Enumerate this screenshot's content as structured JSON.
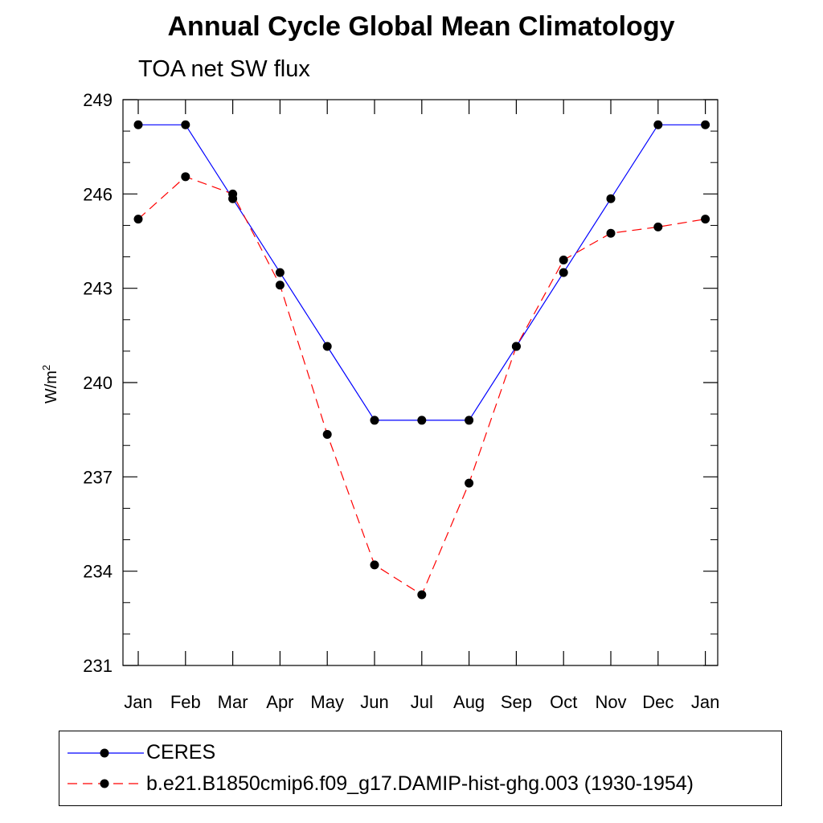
{
  "title": "Annual Cycle Global Mean Climatology",
  "subtitle": "TOA net SW flux",
  "chart_data": {
    "type": "line",
    "title": "Annual Cycle Global Mean Climatology",
    "subtitle": "TOA net SW flux",
    "xlabel": "",
    "ylabel": "W/m",
    "ylabel_superscript": "2",
    "categories": [
      "Jan",
      "Feb",
      "Mar",
      "Apr",
      "May",
      "Jun",
      "Jul",
      "Aug",
      "Sep",
      "Oct",
      "Nov",
      "Dec",
      "Jan"
    ],
    "ylim": [
      231,
      249
    ],
    "yticks": [
      "249",
      "246",
      "243",
      "240",
      "237",
      "234",
      "231"
    ],
    "ytick_values": [
      249,
      246,
      243,
      240,
      237,
      234,
      231
    ],
    "grid": false,
    "legend_position": "bottom",
    "series": [
      {
        "name": "CERES",
        "color": "#0000ff",
        "dash": "solid",
        "values": [
          248.2,
          248.2,
          245.85,
          243.5,
          241.15,
          238.8,
          238.8,
          238.8,
          241.15,
          243.5,
          245.85,
          248.2,
          248.2
        ]
      },
      {
        "name": "b.e21.B1850cmip6.f09_g17.DAMIP-hist-ghg.003 (1930-1954)",
        "color": "#ff0000",
        "dash": "dashed",
        "values": [
          245.2,
          246.55,
          246.0,
          243.1,
          238.35,
          234.2,
          233.25,
          236.8,
          241.15,
          243.9,
          244.75,
          244.95,
          245.2
        ]
      }
    ]
  }
}
